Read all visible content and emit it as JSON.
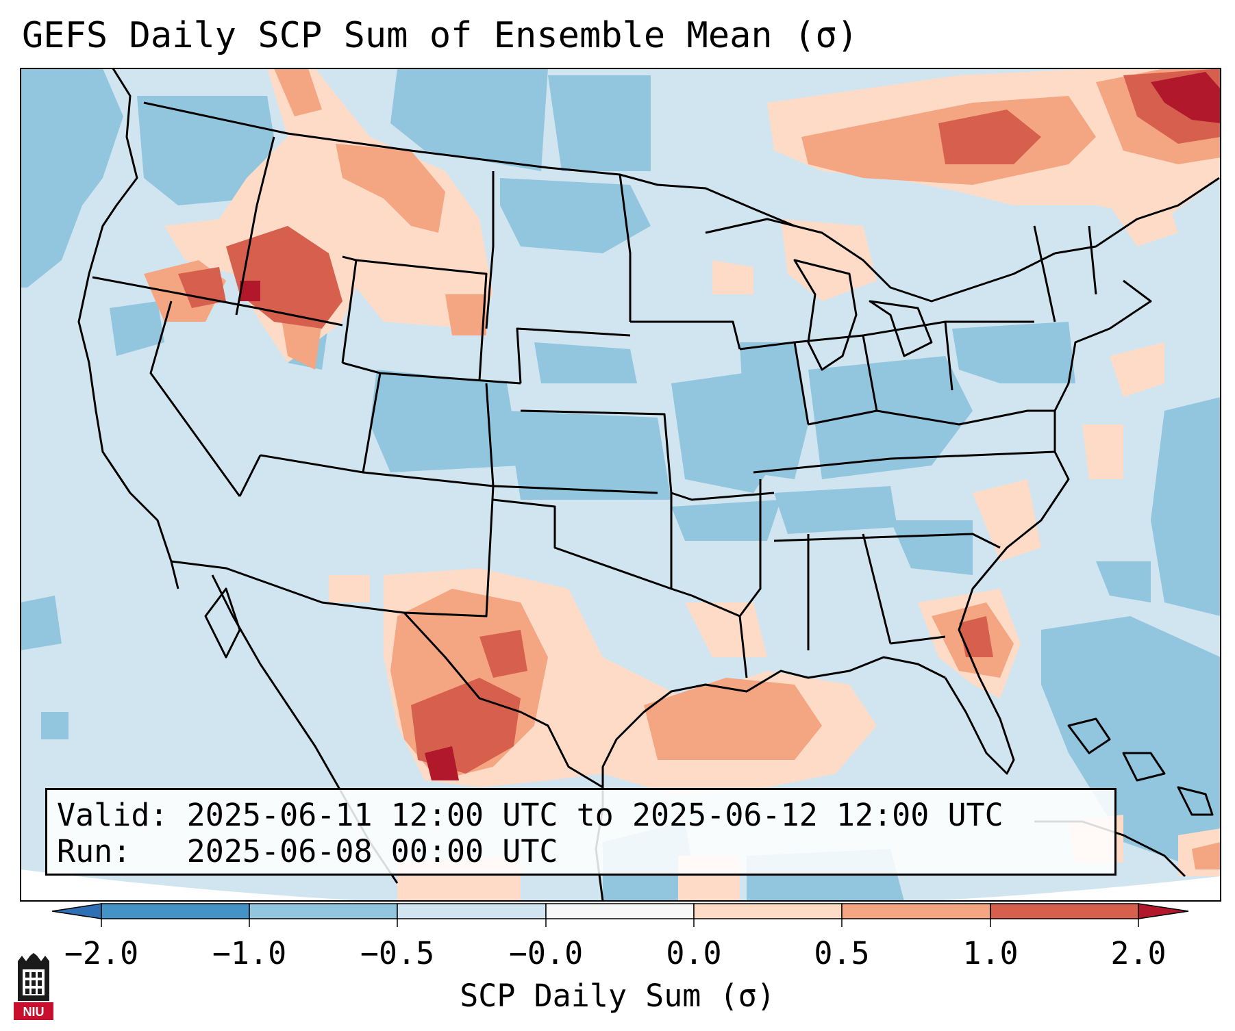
{
  "title": "GEFS Daily SCP Sum of Ensemble Mean (σ)",
  "info": {
    "valid_label": "Valid:",
    "valid_value": "2025-06-11 12:00 UTC to 2025-06-12 12:00 UTC",
    "run_label": "Run:",
    "run_value": "2025-06-08 00:00 UTC"
  },
  "colorbar": {
    "label": "SCP Daily Sum (σ)",
    "ticks": [
      "−2.0",
      "−1.0",
      "−0.5",
      "−0.0",
      "0.0",
      "0.5",
      "1.0",
      "2.0"
    ],
    "bins": [
      {
        "range": "< -2.0",
        "color": "#2f6fb3"
      },
      {
        "range": "-2.0 to -1.0",
        "color": "#4592c6"
      },
      {
        "range": "-1.0 to -0.5",
        "color": "#92c5de"
      },
      {
        "range": "-0.5 to -0.0",
        "color": "#d1e5f0"
      },
      {
        "range": "-0.0 to 0.0",
        "color": "#f7f7f7"
      },
      {
        "range": "0.0 to 0.5",
        "color": "#fddbc7"
      },
      {
        "range": "0.5 to 1.0",
        "color": "#f4a582"
      },
      {
        "range": "1.0 to 2.0",
        "color": "#d6604d"
      },
      {
        "range": "> 2.0",
        "color": "#b2182b"
      }
    ]
  },
  "logo": {
    "text": "NIU"
  },
  "colors": {
    "ocean_background": "#d1e5f0",
    "ocean_negative": "#92c5de",
    "land_neutral": "#d1e5f0",
    "positive_light": "#fddbc7",
    "positive_mid": "#f4a582",
    "positive_strong": "#d6604d",
    "positive_max": "#b2182b",
    "borders": "#000000"
  }
}
